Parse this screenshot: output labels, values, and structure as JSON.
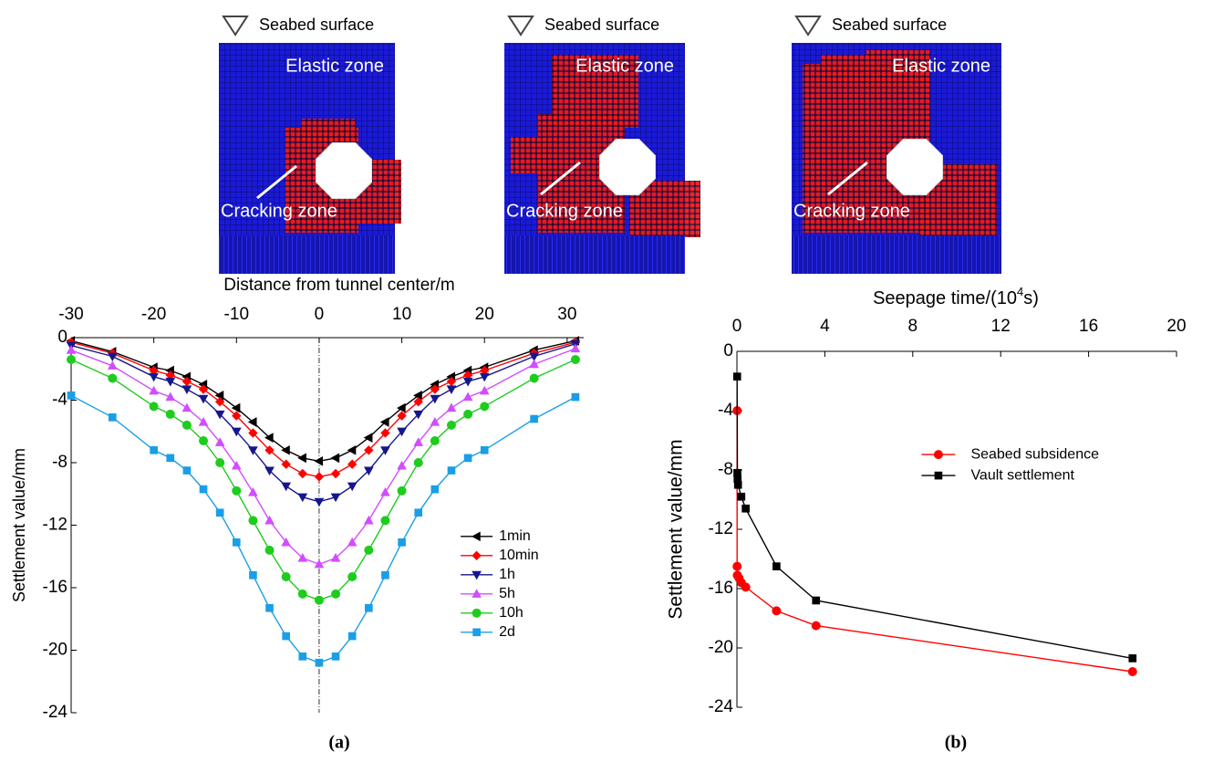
{
  "images": [
    {
      "surface": "Seabed surface",
      "elastic": "Elastic zone",
      "cracking": "Cracking zone"
    },
    {
      "surface": "Seabed surface",
      "elastic": "Elastic zone",
      "cracking": "Cracking zone"
    },
    {
      "surface": "Seabed surface",
      "elastic": "Elastic zone",
      "cracking": "Cracking zone"
    }
  ],
  "chart_data": [
    {
      "type": "line",
      "caption": "(a)",
      "x_label": "Distance from tunnel center/m",
      "y_label": "Settlement value/mm",
      "x": [
        -30,
        -25,
        -20,
        -18,
        -16,
        -14,
        -12,
        -10,
        -8,
        -6,
        -4,
        -2,
        0,
        2,
        4,
        6,
        8,
        10,
        12,
        14,
        16,
        18,
        20,
        26,
        31
      ],
      "xlim": [
        -30,
        32
      ],
      "xticks": [
        -30,
        -20,
        -10,
        0,
        10,
        20,
        30
      ],
      "ylim": [
        -24,
        0
      ],
      "yticks": [
        0,
        -4,
        -8,
        -12,
        -16,
        -20,
        -24
      ],
      "legend": "lower right",
      "center_line": true,
      "series": [
        {
          "name": "1min",
          "color": "#000000",
          "marker": "triangle-left",
          "values": [
            -0.2,
            -0.9,
            -1.9,
            -2.1,
            -2.5,
            -3.0,
            -3.7,
            -4.5,
            -5.4,
            -6.4,
            -7.2,
            -7.7,
            -7.9,
            -7.7,
            -7.2,
            -6.4,
            -5.4,
            -4.5,
            -3.7,
            -3.0,
            -2.5,
            -2.1,
            -1.9,
            -0.8,
            -0.2
          ]
        },
        {
          "name": "10min",
          "color": "#ff0000",
          "marker": "diamond",
          "values": [
            -0.3,
            -1.0,
            -2.1,
            -2.4,
            -2.8,
            -3.3,
            -4.1,
            -5.0,
            -6.1,
            -7.2,
            -8.1,
            -8.7,
            -8.9,
            -8.7,
            -8.1,
            -7.2,
            -6.1,
            -5.0,
            -4.1,
            -3.3,
            -2.8,
            -2.4,
            -2.1,
            -1.0,
            -0.3
          ]
        },
        {
          "name": "1h",
          "color": "#16168c",
          "marker": "triangle-down",
          "values": [
            -0.5,
            -1.2,
            -2.5,
            -2.8,
            -3.3,
            -3.9,
            -4.9,
            -6.0,
            -7.2,
            -8.5,
            -9.5,
            -10.2,
            -10.5,
            -10.2,
            -9.5,
            -8.5,
            -7.2,
            -6.0,
            -4.9,
            -3.9,
            -3.3,
            -2.8,
            -2.5,
            -1.2,
            -0.4
          ]
        },
        {
          "name": "5h",
          "color": "#d24dff",
          "marker": "triangle-up",
          "values": [
            -0.8,
            -1.8,
            -3.4,
            -3.8,
            -4.5,
            -5.4,
            -6.7,
            -8.2,
            -9.9,
            -11.7,
            -13.1,
            -14.1,
            -14.5,
            -14.1,
            -13.1,
            -11.7,
            -9.9,
            -8.2,
            -6.7,
            -5.4,
            -4.5,
            -3.8,
            -3.4,
            -1.7,
            -0.7
          ]
        },
        {
          "name": "10h",
          "color": "#1ecc1e",
          "marker": "circle",
          "values": [
            -1.4,
            -2.6,
            -4.4,
            -4.9,
            -5.6,
            -6.6,
            -8.0,
            -9.8,
            -11.7,
            -13.6,
            -15.3,
            -16.4,
            -16.8,
            -16.4,
            -15.3,
            -13.6,
            -11.7,
            -9.8,
            -8.0,
            -6.6,
            -5.6,
            -4.9,
            -4.4,
            -2.6,
            -1.4
          ]
        },
        {
          "name": "2d",
          "color": "#1a9fe6",
          "marker": "square",
          "values": [
            -3.7,
            -5.1,
            -7.2,
            -7.7,
            -8.5,
            -9.7,
            -11.2,
            -13.1,
            -15.2,
            -17.3,
            -19.1,
            -20.4,
            -20.8,
            -20.4,
            -19.1,
            -17.3,
            -15.2,
            -13.1,
            -11.2,
            -9.7,
            -8.5,
            -7.7,
            -7.2,
            -5.2,
            -3.8
          ]
        }
      ]
    },
    {
      "type": "line",
      "caption": "(b)",
      "x_label": [
        "Seepage time/(10",
        "4",
        "s)"
      ],
      "y_label": "Settlement value/mm",
      "xlim": [
        0,
        20
      ],
      "xticks": [
        0,
        4,
        8,
        12,
        16,
        20
      ],
      "ylim": [
        -24,
        0
      ],
      "yticks": [
        0,
        -4,
        -8,
        -12,
        -16,
        -20,
        -24
      ],
      "legend": "center right",
      "center_line": false,
      "series": [
        {
          "name": "Seabed subsidence",
          "color": "#ff0000",
          "marker": "circle",
          "x": [
            0.01,
            0.01,
            0.02,
            0.1,
            0.2,
            0.4,
            1.8,
            3.6,
            18
          ],
          "values": [
            -4.0,
            -14.5,
            -15.1,
            -15.3,
            -15.6,
            -15.9,
            -17.5,
            -18.5,
            -21.6
          ]
        },
        {
          "name": "Vault settlement",
          "color": "#000000",
          "marker": "square",
          "x": [
            0.01,
            0.02,
            0.03,
            0.05,
            0.2,
            0.4,
            1.8,
            3.6,
            18
          ],
          "values": [
            -1.7,
            -8.2,
            -8.6,
            -9.0,
            -9.8,
            -10.6,
            -14.5,
            -16.8,
            -20.7
          ]
        }
      ]
    }
  ]
}
